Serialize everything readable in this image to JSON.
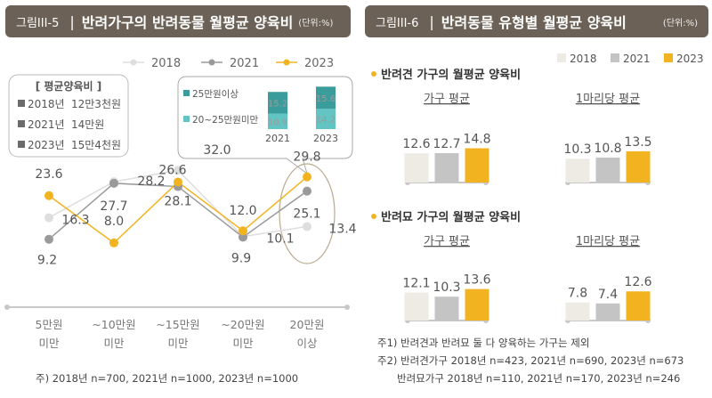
{
  "left": {
    "fig_label": "그림III-5",
    "title": "반려가구의 반려동물 월평균 양육비",
    "unit": "(단위:%)",
    "legend": [
      "2018",
      "2021",
      "2023"
    ],
    "avg_box": {
      "title": "[ 평균양육비 ]",
      "rows": [
        {
          "year": "2018년",
          "value": "12만3천원"
        },
        {
          "year": "2021년",
          "value": "14만원"
        },
        {
          "year": "2023년",
          "value": "15만4천원"
        }
      ]
    },
    "inset": {
      "legend": [
        "25만원이상",
        "20~25만원미만"
      ],
      "years": [
        "2021",
        "2023"
      ],
      "top_values": [
        "15.2",
        "15.6"
      ],
      "bottom_values": [
        "10.9",
        "14.2"
      ]
    },
    "note": "주) 2018년 n=700, 2021년 n=1000, 2023년 n=1000"
  },
  "right": {
    "fig_label": "그림III-6",
    "title": "반려동물 유형별 월평균 양육비",
    "unit": "(단위:%)",
    "legend": [
      "2018",
      "2021",
      "2023"
    ],
    "dog_title": "반려견 가구의 월평균 양육비",
    "cat_title": "반려묘 가구의 월평균 양육비",
    "household_label": "가구 평균",
    "per_animal_label": "1마리당 평균",
    "notes": [
      "주1) 반려견과 반려묘 둘 다 양육하는 가구는 제외",
      "주2) 반려견가구 2018년 n=423, 2021년 n=690, 2023년 n=673",
      "반려묘가구 2018년 n=110, 2021년 n=170, 2023년 n=246"
    ]
  },
  "colors": {
    "y2018": "#dedede",
    "y2021": "#9a9a9a",
    "y2023": "#f2b321",
    "header": "#6b6156"
  },
  "chart_data": [
    {
      "type": "line",
      "categories": [
        "5만원\n미만",
        "~10만원\n미만",
        "~15만원\n미만",
        "~20만원\n미만",
        "20만원\n이상"
      ],
      "series": [
        {
          "name": "2018",
          "values": [
            16.3,
            28.2,
            32.0,
            10.1,
            13.4
          ]
        },
        {
          "name": "2021",
          "values": [
            9.2,
            27.7,
            26.6,
            9.9,
            25.1
          ]
        },
        {
          "name": "2023",
          "values": [
            23.6,
            8.0,
            28.1,
            12.0,
            29.8
          ]
        }
      ],
      "legend": "top"
    },
    {
      "type": "bar",
      "title": "반려견 가구의 월평균 양육비",
      "categories": [
        "가구 평균",
        "1마리당 평균"
      ],
      "series": [
        {
          "name": "2018",
          "values": [
            12.6,
            10.3
          ]
        },
        {
          "name": "2021",
          "values": [
            12.7,
            10.8
          ]
        },
        {
          "name": "2023",
          "values": [
            14.8,
            13.5
          ]
        }
      ]
    },
    {
      "type": "bar",
      "title": "반려묘 가구의 월평균 양육비",
      "categories": [
        "가구 평균",
        "1마리당 평균"
      ],
      "series": [
        {
          "name": "2018",
          "values": [
            12.1,
            7.8
          ]
        },
        {
          "name": "2021",
          "values": [
            10.3,
            7.4
          ]
        },
        {
          "name": "2023",
          "values": [
            13.6,
            12.6
          ]
        }
      ]
    }
  ]
}
